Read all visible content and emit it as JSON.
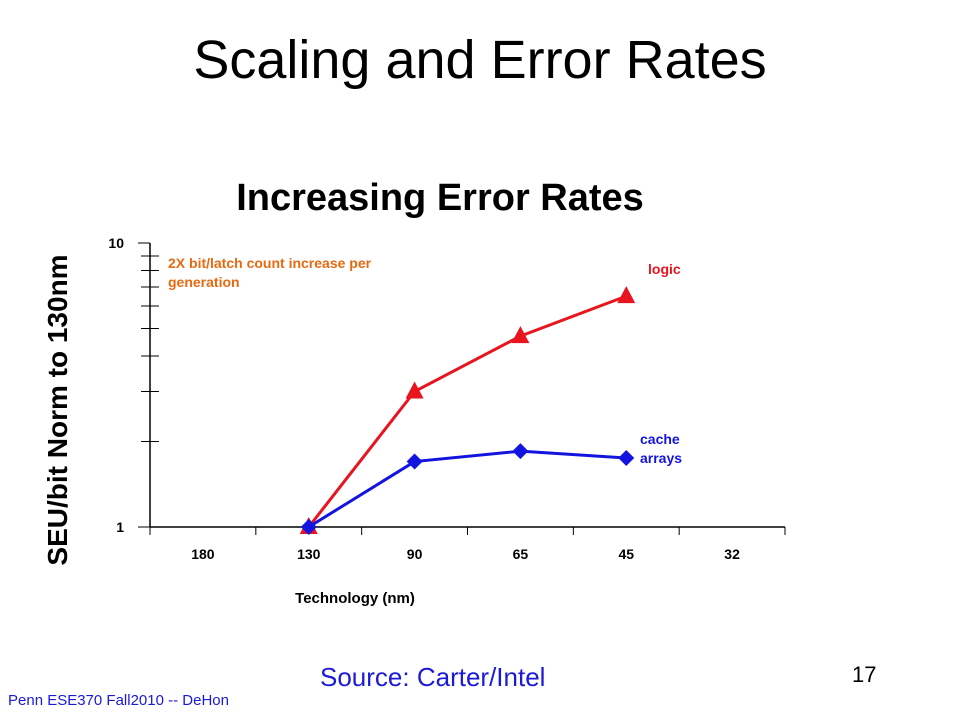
{
  "slide": {
    "title": "Scaling and Error Rates",
    "source": "Source: Carter/Intel",
    "footer": "Penn ESE370 Fall2010 -- DeHon",
    "page_number": "17"
  },
  "chart_data": {
    "type": "line",
    "title": "Increasing Error Rates",
    "xlabel": "Technology (nm)",
    "ylabel": "SEU/bit Norm to 130nm",
    "categories": [
      "180",
      "130",
      "90",
      "65",
      "45",
      "32"
    ],
    "y_scale": "log",
    "ylim": [
      1,
      10
    ],
    "y_tick_labels": [
      "1",
      "10"
    ],
    "grid": false,
    "series": [
      {
        "name": "logic",
        "marker": "triangle",
        "color": "#e8141e",
        "values": [
          null,
          1.0,
          3.0,
          4.7,
          6.5,
          null
        ]
      },
      {
        "name": "cache arrays",
        "marker": "diamond",
        "color": "#1414e0",
        "values": [
          null,
          1.0,
          1.7,
          1.85,
          1.75,
          null
        ]
      }
    ],
    "annotations": [
      {
        "text": "2X bit/latch count increase per generation",
        "color": "#e86a10"
      }
    ]
  }
}
